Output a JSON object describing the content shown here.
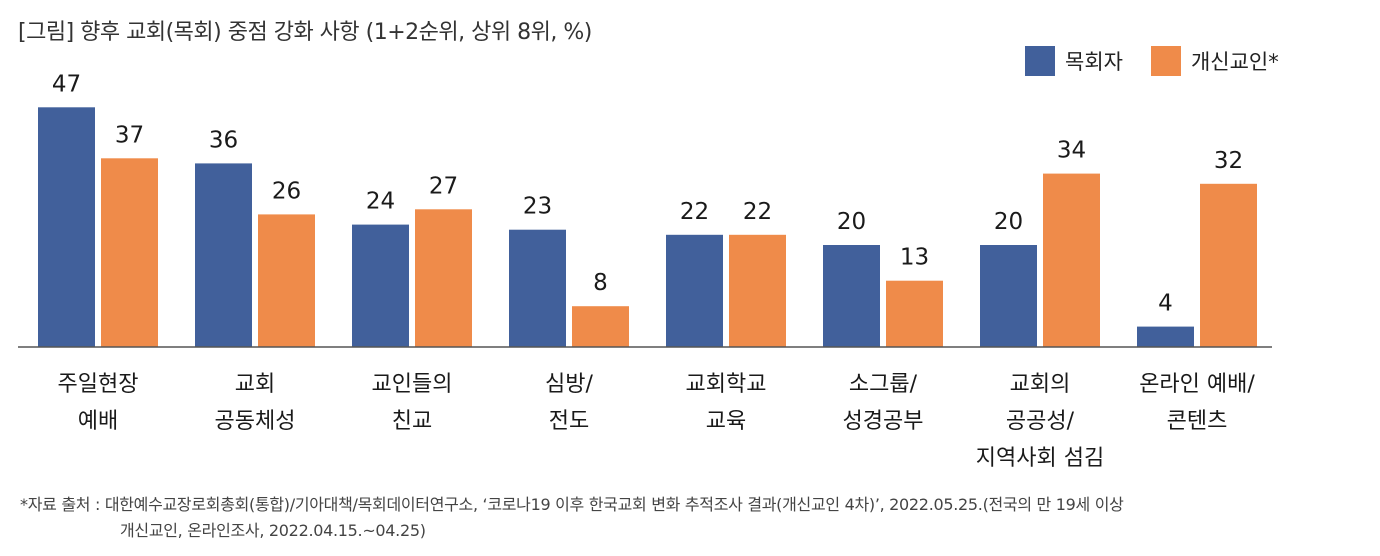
{
  "title": "[그림] 향후 교회(목회) 중점 강화 사항 (1+2순위, 상위 8위, %)",
  "colors": {
    "series1": "#41609b",
    "series2": "#ef8b4a",
    "axis": "#555555"
  },
  "source": {
    "line1": "*자료 출처 : 대한예수교장로회총회(통합)/기아대책/목회데이터연구소, ‘코로나19 이후 한국교회 변화 추적조사 결과(개신교인 4차)’, 2022.05.25.(전국의 만 19세 이상",
    "line2": "개신교인, 온라인조사,  2022.04.15.~04.25)"
  },
  "chart_data": {
    "type": "bar",
    "title": "[그림] 향후 교회(목회) 중점 강화 사항 (1+2순위, 상위 8위, %)",
    "categories": [
      [
        "주일현장",
        "예배"
      ],
      [
        "교회",
        "공동체성"
      ],
      [
        "교인들의",
        "친교"
      ],
      [
        "심방/",
        "전도"
      ],
      [
        "교회학교",
        "교육"
      ],
      [
        "소그룹/",
        "성경공부"
      ],
      [
        "교회의",
        "공공성/",
        "지역사회 섬김"
      ],
      [
        "온라인 예배/",
        "콘텐츠"
      ]
    ],
    "series": [
      {
        "name": "목회자",
        "values": [
          47,
          36,
          24,
          23,
          22,
          20,
          20,
          4
        ]
      },
      {
        "name": "개신교인*",
        "values": [
          37,
          26,
          27,
          8,
          22,
          13,
          34,
          32
        ]
      }
    ],
    "ylim": [
      0,
      50
    ],
    "grid": false,
    "legend": "top-right"
  }
}
